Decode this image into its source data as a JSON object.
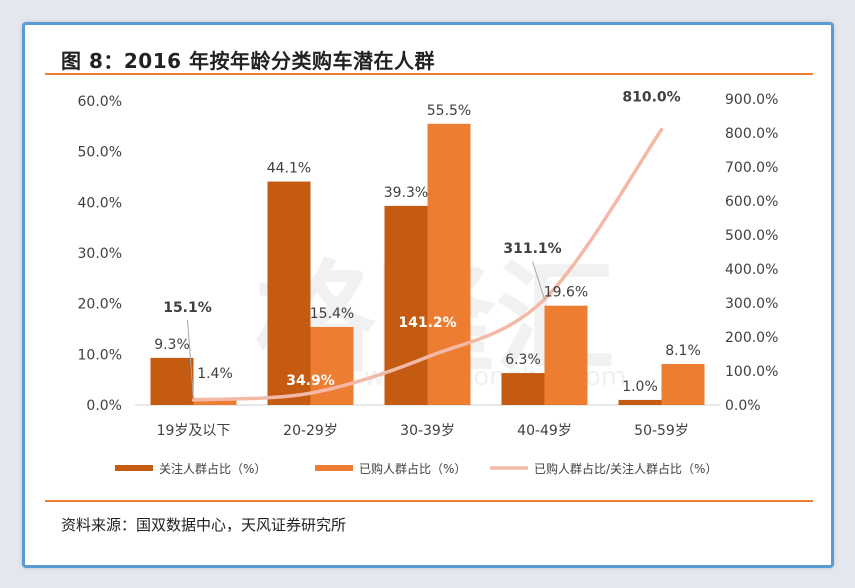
{
  "header": {
    "title": "图 8：2016 年按年龄分类购车潜在人群"
  },
  "footer": {
    "source": "资料来源：国双数据中心，天风证券研究所"
  },
  "watermark": {
    "text": "格隆汇",
    "url": "www.gelonghui.com"
  },
  "colors": {
    "series1": "#c55a11",
    "series2": "#ed7d31",
    "line": "#f4b9a6",
    "rule": "#ed7d31",
    "border": "#5b9bd5"
  },
  "chart_data": {
    "type": "bar",
    "categories": [
      "19岁及以下",
      "20-29岁",
      "30-39岁",
      "40-49岁",
      "50-59岁"
    ],
    "series": [
      {
        "name": "关注人群占比（%）",
        "type": "bar",
        "axis": "left",
        "values": [
          9.3,
          44.1,
          39.3,
          6.3,
          1.0
        ],
        "labels": [
          "9.3%",
          "44.1%",
          "39.3%",
          "6.3%",
          "1.0%"
        ]
      },
      {
        "name": "已购人群占比（%）",
        "type": "bar",
        "axis": "left",
        "values": [
          1.4,
          15.4,
          55.5,
          19.6,
          8.1
        ],
        "labels": [
          "1.4%",
          "15.4%",
          "55.5%",
          "19.6%",
          "8.1%"
        ]
      },
      {
        "name": "已购人群占比/关注人群占比（%）",
        "type": "line",
        "axis": "right",
        "values": [
          15.1,
          34.9,
          141.2,
          311.1,
          810.0
        ],
        "labels": [
          "15.1%",
          "34.9%",
          "141.2%",
          "311.1%",
          "810.0%"
        ]
      }
    ],
    "y_left": {
      "range": [
        0,
        60
      ],
      "ticks": [
        "0.0%",
        "10.0%",
        "20.0%",
        "30.0%",
        "40.0%",
        "50.0%",
        "60.0%"
      ]
    },
    "y_right": {
      "range": [
        0,
        900
      ],
      "ticks": [
        "0.0%",
        "100.0%",
        "200.0%",
        "300.0%",
        "400.0%",
        "500.0%",
        "600.0%",
        "700.0%",
        "800.0%",
        "900.0%"
      ]
    },
    "legend": "bottom",
    "grid": false
  }
}
